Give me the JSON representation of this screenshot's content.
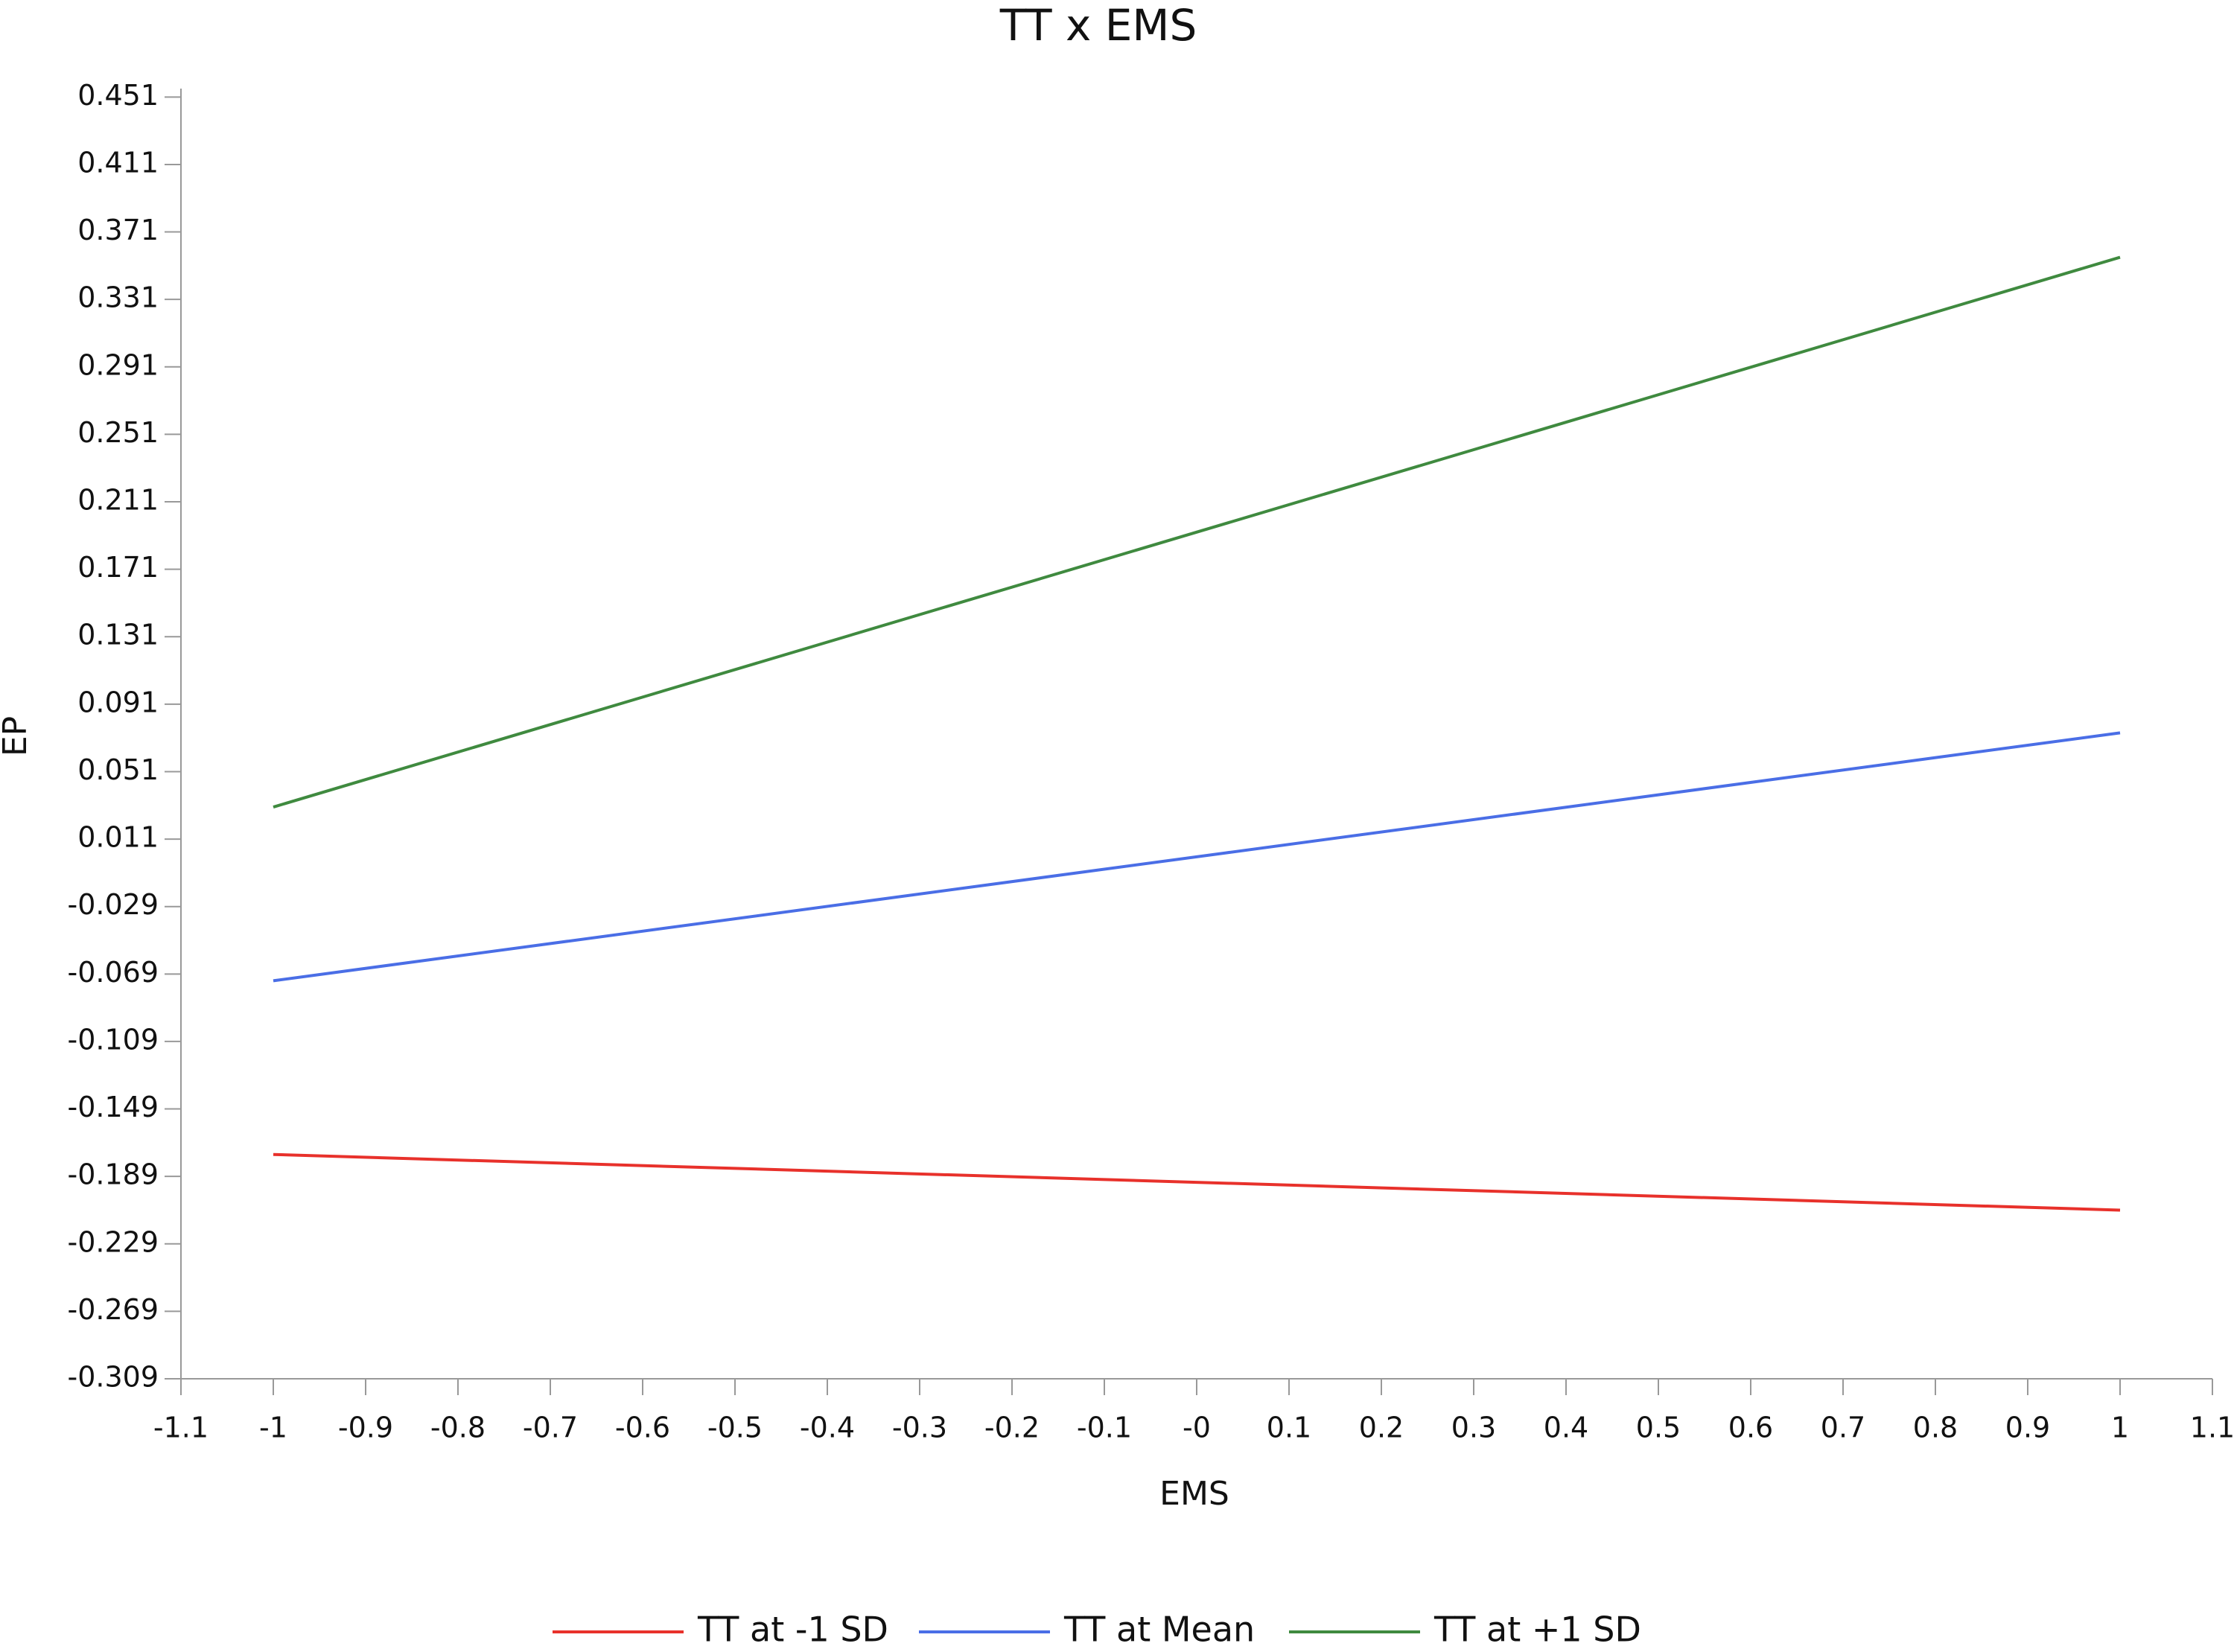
{
  "chart_data": {
    "type": "line",
    "title": "TT x EMS",
    "xlabel": "EMS",
    "ylabel": "EP",
    "x": [
      -1,
      1
    ],
    "series": [
      {
        "name": "TT at -1 SD",
        "color": "#e8312b",
        "values": [
          -0.176,
          -0.209
        ]
      },
      {
        "name": "TT at Mean",
        "color": "#4a6ee6",
        "values": [
          -0.073,
          0.074
        ]
      },
      {
        "name": "TT at +1 SD",
        "color": "#3f8a3f",
        "values": [
          0.03,
          0.356
        ]
      }
    ],
    "xlim": [
      -1.1,
      1.1
    ],
    "xticks": [
      -1.1,
      -1,
      -0.9,
      -0.8,
      -0.7,
      -0.6,
      -0.5,
      -0.4,
      -0.3,
      -0.2,
      -0.1,
      {
        "value": 0,
        "label": "-0"
      },
      0.1,
      0.2,
      0.3,
      0.4,
      0.5,
      0.6,
      0.7,
      0.8,
      0.9,
      1,
      1.1
    ],
    "ylim": [
      -0.309,
      0.456
    ],
    "yticks": [
      0.451,
      0.411,
      0.371,
      0.331,
      0.291,
      0.251,
      0.211,
      0.171,
      0.131,
      0.091,
      0.051,
      0.011,
      -0.029,
      -0.069,
      -0.109,
      -0.149,
      -0.189,
      -0.229,
      -0.269,
      -0.309
    ],
    "legend": "bottom"
  }
}
